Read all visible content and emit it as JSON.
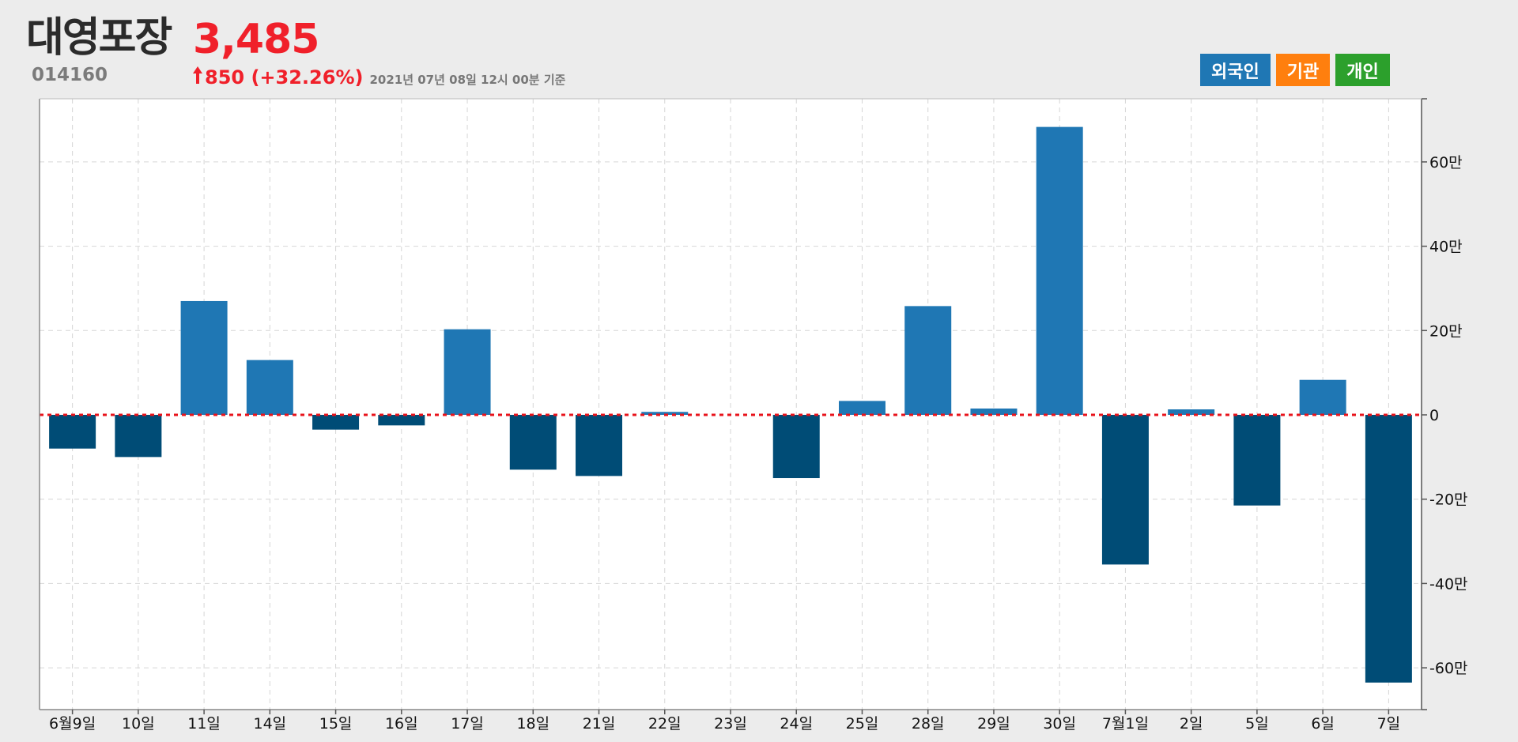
{
  "header": {
    "name": "대영포장",
    "code": "014160",
    "price": "3,485",
    "change": "850 (+32.26%)",
    "asof": "2021년 07년 08일 12시 00분 기준"
  },
  "legend": [
    {
      "label": "외국인",
      "color": "#1f77b4"
    },
    {
      "label": "기관",
      "color": "#ff7f0e"
    },
    {
      "label": "개인",
      "color": "#2ca02c"
    }
  ],
  "colors": {
    "positive": "#1f77b4",
    "negative": "#004c76",
    "zero_line": "#e8131b",
    "price_up": "#f0202a"
  },
  "chart_data": {
    "type": "bar",
    "title": "",
    "series": [
      {
        "name": "외국인",
        "values": [
          -8,
          -10,
          27,
          13,
          -3.5,
          -2.5,
          20.3,
          -13,
          -14.5,
          0.7,
          0,
          -15,
          3.3,
          25.8,
          1.5,
          68.3,
          -35.5,
          1.3,
          -21.5,
          8.3,
          -63.5
        ]
      }
    ],
    "categories": [
      "6월9일",
      "10일",
      "11일",
      "14일",
      "15일",
      "16일",
      "17일",
      "18일",
      "21일",
      "22일",
      "23일",
      "24일",
      "25일",
      "28일",
      "29일",
      "30일",
      "7월1일",
      "2일",
      "5일",
      "6일",
      "7일"
    ],
    "unit": "만",
    "ylim": [
      -70,
      75
    ],
    "yticks": [
      -60,
      -40,
      -20,
      0,
      20,
      40,
      60
    ],
    "ytick_labels": [
      "-60만",
      "-40만",
      "-20만",
      "0",
      "20만",
      "40만",
      "60만"
    ],
    "grid": true,
    "zero_line": "dotted"
  }
}
